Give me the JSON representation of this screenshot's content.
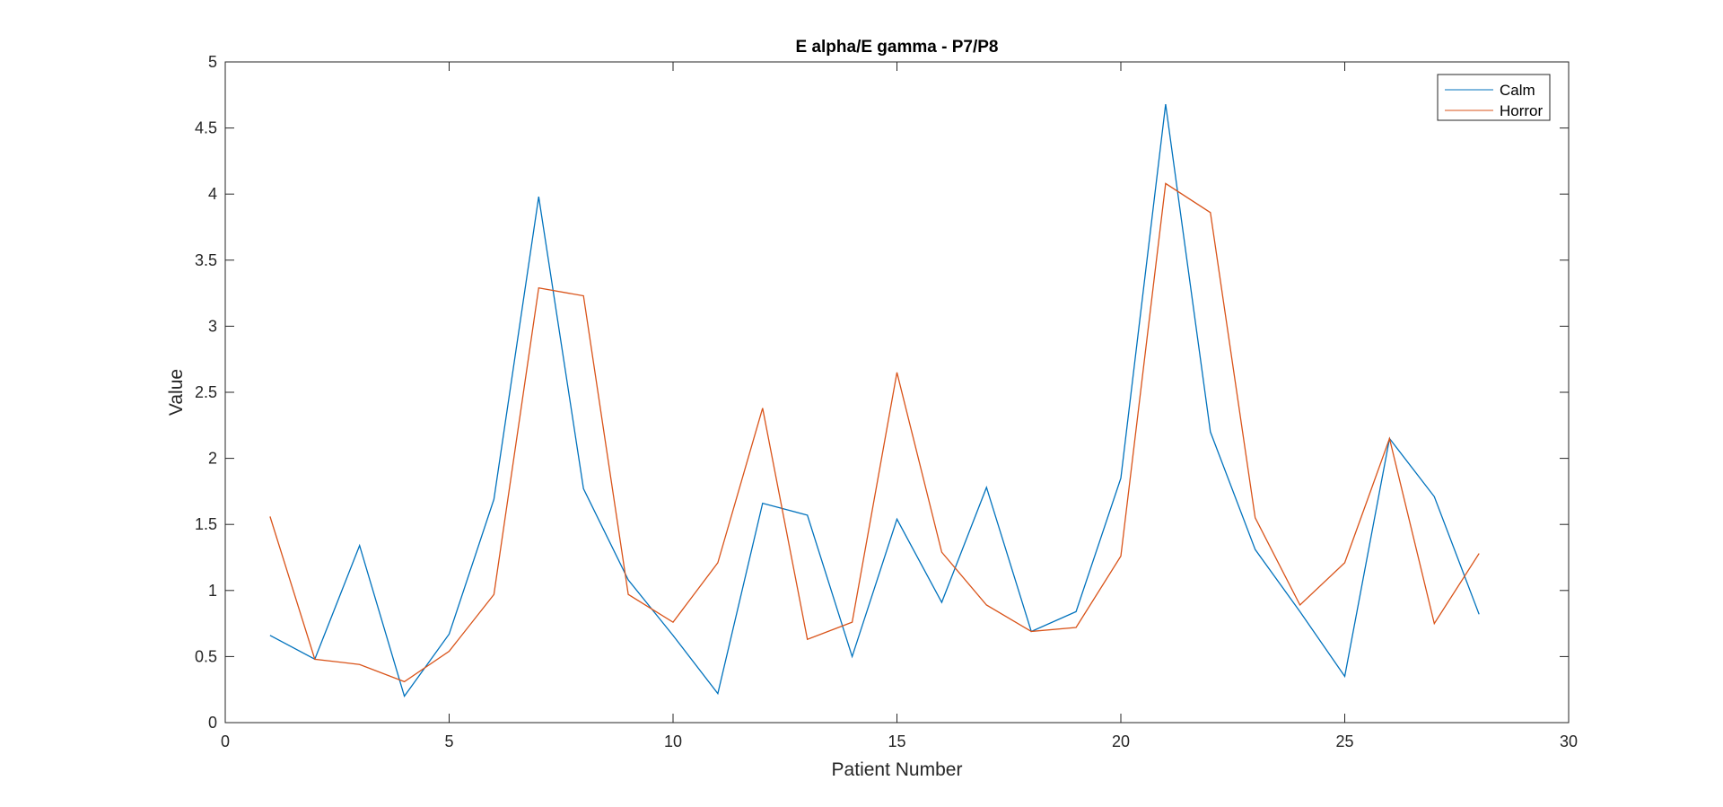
{
  "chart_data": {
    "type": "line",
    "title": "E alpha/E gamma - P7/P8",
    "xlabel": "Patient Number",
    "ylabel": "Value",
    "xlim": [
      0,
      30
    ],
    "ylim": [
      0,
      5
    ],
    "xticks": [
      0,
      5,
      10,
      15,
      20,
      25,
      30
    ],
    "yticks": [
      0,
      0.5,
      1,
      1.5,
      2,
      2.5,
      3,
      3.5,
      4,
      4.5,
      5
    ],
    "grid": false,
    "legend_position": "top-right",
    "x": [
      1,
      2,
      3,
      4,
      5,
      6,
      7,
      8,
      9,
      10,
      11,
      12,
      13,
      14,
      15,
      16,
      17,
      18,
      19,
      20,
      21,
      22,
      23,
      24,
      25,
      26,
      27,
      28
    ],
    "series": [
      {
        "name": "Calm",
        "color": "#0072BD",
        "values": [
          0.66,
          0.48,
          1.34,
          0.2,
          0.67,
          1.69,
          3.98,
          1.77,
          1.08,
          0.66,
          0.22,
          1.66,
          1.57,
          0.5,
          1.54,
          0.91,
          1.78,
          0.69,
          0.84,
          1.85,
          4.68,
          2.2,
          1.31,
          0.84,
          0.35,
          2.15,
          1.71,
          0.82
        ]
      },
      {
        "name": "Horror",
        "color": "#D95319",
        "values": [
          1.56,
          0.48,
          0.44,
          0.31,
          0.54,
          0.97,
          3.29,
          3.23,
          0.97,
          0.76,
          1.21,
          2.38,
          0.63,
          0.76,
          2.65,
          1.29,
          0.89,
          0.69,
          0.72,
          1.26,
          4.08,
          3.86,
          1.55,
          0.89,
          1.21,
          2.15,
          0.75,
          1.28
        ]
      }
    ]
  }
}
